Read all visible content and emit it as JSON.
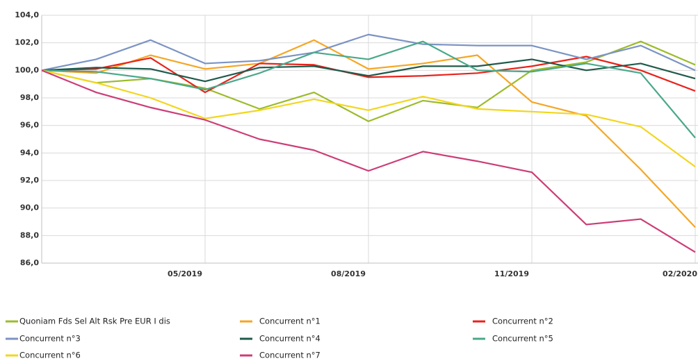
{
  "chart_data": {
    "type": "line",
    "categories": [
      null,
      null,
      null,
      "05/2019",
      null,
      null,
      "08/2019",
      null,
      null,
      "11/2019",
      null,
      null,
      "02/2020"
    ],
    "ylim": [
      86,
      104
    ],
    "yticks": [
      {
        "value": 86,
        "label": "86,0"
      },
      {
        "value": 88,
        "label": "88,0"
      },
      {
        "value": 90,
        "label": "90,0"
      },
      {
        "value": 92,
        "label": "92,0"
      },
      {
        "value": 94,
        "label": "94,0"
      },
      {
        "value": 96,
        "label": "96,0"
      },
      {
        "value": 98,
        "label": "98,0"
      },
      {
        "value": 100,
        "label": "100,0"
      },
      {
        "value": 102,
        "label": "102,0"
      },
      {
        "value": 104,
        "label": "104,0"
      }
    ],
    "grid": true,
    "series": [
      {
        "name": "Quoniam Fds Sel Alt Rsk Pre EUR I dis",
        "color": "#9bbb2a",
        "values": [
          100,
          99.1,
          99.4,
          98.7,
          97.2,
          98.4,
          96.3,
          97.8,
          97.3,
          100.0,
          100.6,
          102.1,
          100.4
        ]
      },
      {
        "name": "Concurrent n°1",
        "color": "#f5a623",
        "values": [
          100,
          99.8,
          101.1,
          100.1,
          100.5,
          102.2,
          100.1,
          100.5,
          101.1,
          97.7,
          96.7,
          92.8,
          88.6
        ]
      },
      {
        "name": "Concurrent n°2",
        "color": "#e8221b",
        "values": [
          100,
          100.1,
          100.9,
          98.4,
          100.5,
          100.4,
          99.5,
          99.6,
          99.8,
          100.3,
          101.0,
          100.0,
          98.5
        ]
      },
      {
        "name": "Concurrent n°3",
        "color": "#7b93c4",
        "values": [
          100,
          100.8,
          102.2,
          100.5,
          100.7,
          101.3,
          102.6,
          101.9,
          101.8,
          101.8,
          100.8,
          101.8,
          100.0
        ]
      },
      {
        "name": "Concurrent n°4",
        "color": "#1f5a4b",
        "values": [
          100,
          100.2,
          100.1,
          99.2,
          100.2,
          100.3,
          99.6,
          100.3,
          100.3,
          100.8,
          100.0,
          100.5,
          99.4
        ]
      },
      {
        "name": "Concurrent n°5",
        "color": "#4aa88a",
        "values": [
          100,
          99.9,
          99.4,
          98.6,
          99.8,
          101.3,
          100.8,
          102.1,
          100.0,
          99.9,
          100.5,
          99.8,
          95.1
        ]
      },
      {
        "name": "Concurrent n°6",
        "color": "#f2d61e",
        "values": [
          100,
          99.1,
          98.0,
          96.5,
          97.1,
          97.9,
          97.1,
          98.1,
          97.2,
          97.0,
          96.8,
          95.9,
          93.0
        ]
      },
      {
        "name": "Concurrent n°7",
        "color": "#cc3d77",
        "values": [
          100,
          98.4,
          97.3,
          96.4,
          95.0,
          94.2,
          92.7,
          94.1,
          93.4,
          92.6,
          88.8,
          89.2,
          86.8
        ]
      }
    ]
  }
}
